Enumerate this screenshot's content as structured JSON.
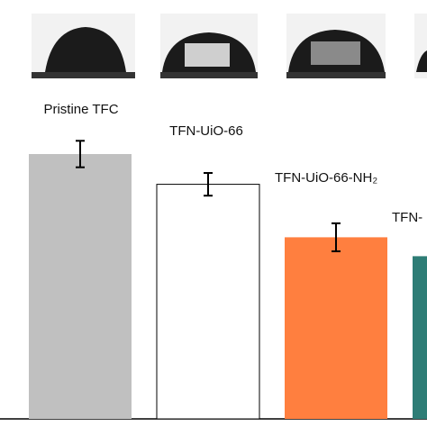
{
  "chart_data": {
    "type": "bar",
    "categories": [
      "Pristine TFC",
      "TFN-UiO-66",
      "TFN-UiO-66-NH₂",
      "TFN-"
    ],
    "series": [
      {
        "values": [
          70,
          62,
          48,
          43
        ],
        "errors": [
          3.5,
          3,
          3.7,
          null
        ],
        "colors": [
          "#c0c0c0",
          "#ffffff",
          "#ff7f3f",
          "#2e7d76"
        ]
      }
    ],
    "ylim": [
      0,
      80
    ]
  }
}
